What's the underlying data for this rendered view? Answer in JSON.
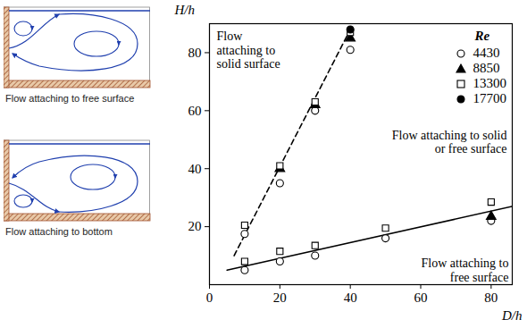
{
  "chart_data": {
    "type": "scatter",
    "xlabel": "D/h",
    "ylabel": "H/h",
    "xlim": [
      0,
      86
    ],
    "ylim": [
      0,
      90
    ],
    "xticks": [
      0,
      20,
      40,
      60,
      80
    ],
    "yticks": [
      20,
      40,
      60,
      80
    ],
    "legend": "top-right",
    "legend_title": "Re",
    "series": [
      {
        "name": "4430",
        "color": "#000000",
        "marker": "circle-open",
        "x": [
          10,
          20,
          30,
          40,
          10,
          20,
          30,
          50,
          80
        ],
        "values": [
          17.5,
          35,
          60,
          81,
          5,
          8,
          10,
          16,
          22
        ]
      },
      {
        "name": "8850",
        "color": "#000000",
        "marker": "triangle-filled",
        "x": [
          20,
          30,
          40,
          80
        ],
        "values": [
          40,
          62,
          85,
          23.5
        ]
      },
      {
        "name": "13300",
        "color": "#000000",
        "marker": "square-open",
        "x": [
          10,
          20,
          30,
          40,
          10,
          20,
          30,
          50,
          80
        ],
        "values": [
          20.5,
          41,
          63,
          87,
          8,
          11.5,
          13.5,
          19.5,
          28.5
        ]
      },
      {
        "name": "17700",
        "color": "#000000",
        "marker": "circle-filled",
        "x": [
          40
        ],
        "values": [
          88
        ]
      }
    ],
    "lines": [
      {
        "type": "line",
        "color": "#000000",
        "line_style": "dashed",
        "x": [
          7,
          40
        ],
        "values": [
          10,
          88
        ]
      },
      {
        "type": "line",
        "color": "#000000",
        "line_style": "solid",
        "x": [
          5,
          86
        ],
        "values": [
          5,
          27
        ]
      }
    ],
    "annotations": [
      "Flow\nattaching to\nsolid surface",
      "Flow attaching to solid\nor free surface",
      "Flow attaching to\nfree surface"
    ]
  },
  "schematics": [
    {
      "caption": "Flow attaching to free surface"
    },
    {
      "caption": "Flow attaching to bottom"
    }
  ]
}
